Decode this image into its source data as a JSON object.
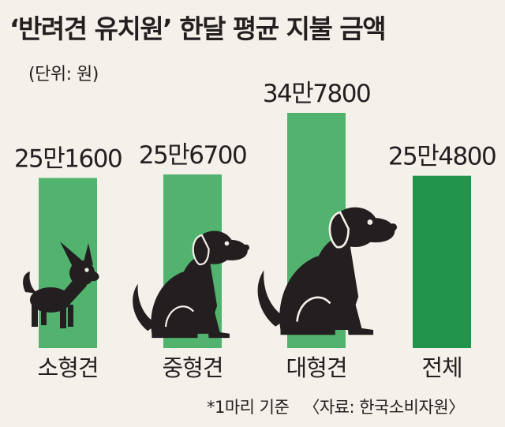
{
  "title": "‘반려견 유치원’ 한달 평균 지불 금액",
  "unit_note": "(단위: 원)",
  "footnote": "*1마리 기준",
  "source": "〈자료: 한국소비자원〉",
  "colors": {
    "bar": "#52b36f",
    "bar_total": "#22934a",
    "dog": "#231f20",
    "background": "#f4f1ea"
  },
  "chart_data": {
    "type": "bar",
    "title": "‘반려견 유치원’ 한달 평균 지불 금액",
    "unit": "(단위: 원)",
    "categories": [
      "소형견",
      "중형견",
      "대형견",
      "전체"
    ],
    "values": [
      251600,
      256700,
      347800,
      254800
    ],
    "data_labels": [
      "25만1600",
      "25만6700",
      "34만7800",
      "25만4800"
    ],
    "icons": [
      "small-dog-icon",
      "medium-dog-icon",
      "large-dog-icon",
      null
    ],
    "grid": false,
    "legend": "none"
  }
}
